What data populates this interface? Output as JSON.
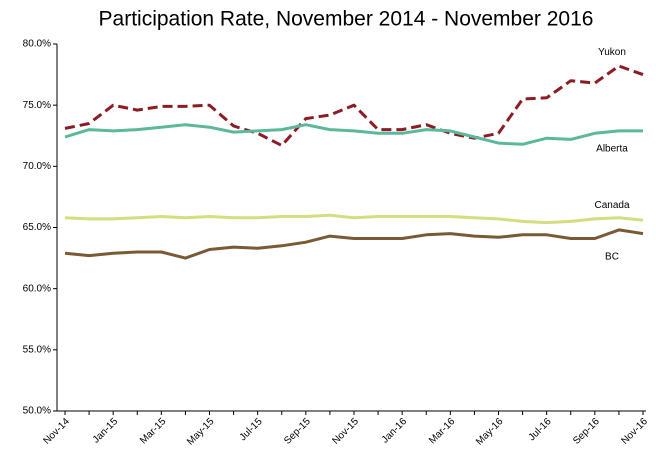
{
  "chart_data": {
    "type": "line",
    "title": "Participation Rate, November 2014 - November 2016",
    "categories": [
      "Nov-14",
      null,
      "Jan-15",
      null,
      "Mar-15",
      null,
      "May-15",
      null,
      "Jul-15",
      null,
      "Sep-15",
      null,
      "Nov-15",
      null,
      "Jan-16",
      null,
      "Mar-16",
      null,
      "May-16",
      null,
      "Jul-16",
      null,
      "Sep-16",
      null,
      "Nov-16"
    ],
    "series": [
      {
        "name": "Yukon",
        "color": "#8b1c24",
        "dashed": true,
        "values": [
          73.1,
          73.5,
          75.0,
          74.6,
          74.9,
          74.9,
          75.0,
          73.3,
          72.7,
          71.7,
          73.9,
          74.2,
          75.0,
          73.0,
          73.0,
          73.4,
          72.7,
          72.3,
          72.7,
          75.5,
          75.6,
          77.0,
          76.8,
          78.2,
          77.5
        ]
      },
      {
        "name": "Alberta",
        "color": "#5cb89a",
        "dashed": false,
        "values": [
          72.4,
          73.0,
          72.9,
          73.0,
          73.2,
          73.4,
          73.2,
          72.8,
          72.9,
          73.0,
          73.4,
          73.0,
          72.9,
          72.7,
          72.7,
          73.0,
          72.9,
          72.4,
          71.9,
          71.8,
          72.3,
          72.2,
          72.7,
          72.9,
          72.9
        ]
      },
      {
        "name": "Canada",
        "color": "#d4de7e",
        "dashed": false,
        "values": [
          65.8,
          65.7,
          65.7,
          65.8,
          65.9,
          65.8,
          65.9,
          65.8,
          65.8,
          65.9,
          65.9,
          66.0,
          65.8,
          65.9,
          65.9,
          65.9,
          65.9,
          65.8,
          65.7,
          65.5,
          65.4,
          65.5,
          65.7,
          65.8,
          65.6
        ]
      },
      {
        "name": "BC",
        "color": "#7a5a34",
        "dashed": false,
        "values": [
          62.9,
          62.7,
          62.9,
          63.0,
          63.0,
          62.5,
          63.2,
          63.4,
          63.3,
          63.5,
          63.8,
          64.3,
          64.1,
          64.1,
          64.1,
          64.4,
          64.5,
          64.3,
          64.2,
          64.4,
          64.4,
          64.1,
          64.1,
          64.8,
          64.5
        ]
      }
    ],
    "ylim": [
      50,
      80
    ],
    "yticks": [
      {
        "value": 50,
        "label": "50.0%"
      },
      {
        "value": 55,
        "label": "55.0%"
      },
      {
        "value": 60,
        "label": "60.0%"
      },
      {
        "value": 65,
        "label": "65.0%"
      },
      {
        "value": 70,
        "label": "70.0%"
      },
      {
        "value": 75,
        "label": "75.0%"
      },
      {
        "value": 80,
        "label": "80.0%"
      }
    ],
    "grid": false
  }
}
